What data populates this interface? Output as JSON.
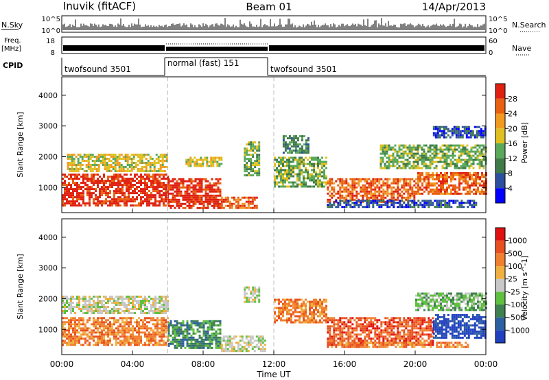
{
  "header": {
    "station": "Inuvik (fitACF)",
    "beam": "Beam 01",
    "date": "14/Apr/2013"
  },
  "sky_panel": {
    "left_label": "N.Sky",
    "right_label": "N.Search",
    "left_ticks": [
      "10^5",
      "10^0"
    ],
    "right_ticks": [
      "10^5",
      "10^0"
    ]
  },
  "freq_panel": {
    "left_label_top": "Freq.",
    "left_label_bottom": "[MHz]",
    "left_ticks": [
      "18",
      "8"
    ],
    "right_label": "Nave",
    "right_ticks": [
      "60",
      "0"
    ]
  },
  "cpid": {
    "label": "CPID",
    "segments": [
      {
        "label": "twofsound 3501",
        "start_hour": 0,
        "end_hour": 6
      },
      {
        "label": "normal (fast) 151",
        "start_hour": 6,
        "end_hour": 12
      },
      {
        "label": "twofsound 3501",
        "start_hour": 12,
        "end_hour": 24
      }
    ]
  },
  "chart_data": [
    {
      "type": "heatmap",
      "title": "",
      "ylabel": "Slant Range [km]",
      "xlabel": "",
      "x_range_hours": [
        0,
        24
      ],
      "ylim": [
        180,
        4600
      ],
      "y_ticks": [
        1000,
        2000,
        3000,
        4000
      ],
      "colorbar": {
        "label": "Power [dB]",
        "ticks": [
          "28",
          "24",
          "20",
          "16",
          "12",
          "8",
          "4"
        ],
        "colors": [
          "#0000ff",
          "#2c4fa0",
          "#3f7a48",
          "#5aa85a",
          "#e0c020",
          "#f29a20",
          "#e86010",
          "#e02010"
        ]
      },
      "regions": [
        {
          "t0": 0,
          "t1": 6,
          "r0": 400,
          "r1": 1450,
          "level": 7
        },
        {
          "t0": 0.3,
          "t1": 6,
          "r0": 1500,
          "r1": 2100,
          "level": 4
        },
        {
          "t0": 6,
          "t1": 9,
          "r0": 300,
          "r1": 1300,
          "level": 7
        },
        {
          "t0": 9,
          "t1": 11,
          "r0": 300,
          "r1": 700,
          "level": 6
        },
        {
          "t0": 7,
          "t1": 9,
          "r0": 1700,
          "r1": 2000,
          "level": 4
        },
        {
          "t0": 10.3,
          "t1": 11.2,
          "r0": 1400,
          "r1": 2500,
          "level": 3
        },
        {
          "t0": 12,
          "t1": 15,
          "r0": 1000,
          "r1": 2000,
          "level": 3
        },
        {
          "t0": 12.5,
          "t1": 14,
          "r0": 2100,
          "r1": 2700,
          "level": 2
        },
        {
          "t0": 15,
          "t1": 20,
          "r0": 500,
          "r1": 1300,
          "level": 6
        },
        {
          "t0": 15,
          "t1": 23.5,
          "r0": 380,
          "r1": 600,
          "level": 1
        },
        {
          "t0": 20,
          "t1": 24,
          "r0": 800,
          "r1": 1500,
          "level": 6
        },
        {
          "t0": 18,
          "t1": 24,
          "r0": 1600,
          "r1": 2400,
          "level": 3
        },
        {
          "t0": 21,
          "t1": 24,
          "r0": 2600,
          "r1": 3000,
          "level": 1
        }
      ]
    },
    {
      "type": "heatmap",
      "title": "",
      "ylabel": "Slant Range [km]",
      "xlabel": "Time UT",
      "x_range_hours": [
        0,
        24
      ],
      "x_ticks": [
        "00:00",
        "04:00",
        "08:00",
        "12:00",
        "16:00",
        "20:00",
        "00:00"
      ],
      "ylim": [
        180,
        4600
      ],
      "y_ticks": [
        1000,
        2000,
        3000,
        4000
      ],
      "colorbar": {
        "label": "Velocity [m s^-1]",
        "ticks": [
          "1000",
          "500",
          "100",
          "25",
          "-25",
          "-100",
          "-500",
          "-1000"
        ],
        "colors": [
          "#2040c0",
          "#2c60a0",
          "#3f8050",
          "#60c040",
          "#c8c8c8",
          "#f0b040",
          "#f08030",
          "#e85020",
          "#e01010"
        ]
      },
      "regions": [
        {
          "t0": 0,
          "t1": 6,
          "r0": 500,
          "r1": 1400,
          "level": 6
        },
        {
          "t0": 0,
          "t1": 6,
          "r0": 1500,
          "r1": 2100,
          "level": 4
        },
        {
          "t0": 6,
          "t1": 9,
          "r0": 400,
          "r1": 1300,
          "level": 2
        },
        {
          "t0": 9,
          "t1": 11.5,
          "r0": 300,
          "r1": 800,
          "level": 4
        },
        {
          "t0": 10.3,
          "t1": 11.2,
          "r0": 1900,
          "r1": 2400,
          "level": 4
        },
        {
          "t0": 12,
          "t1": 15,
          "r0": 1200,
          "r1": 2000,
          "level": 6
        },
        {
          "t0": 15,
          "t1": 21,
          "r0": 500,
          "r1": 1400,
          "level": 7
        },
        {
          "t0": 21,
          "t1": 24,
          "r0": 700,
          "r1": 1500,
          "level": 0
        },
        {
          "t0": 20,
          "t1": 24,
          "r0": 1600,
          "r1": 2200,
          "level": 3
        },
        {
          "t0": 15,
          "t1": 23,
          "r0": 400,
          "r1": 600,
          "level": 6
        }
      ]
    }
  ]
}
